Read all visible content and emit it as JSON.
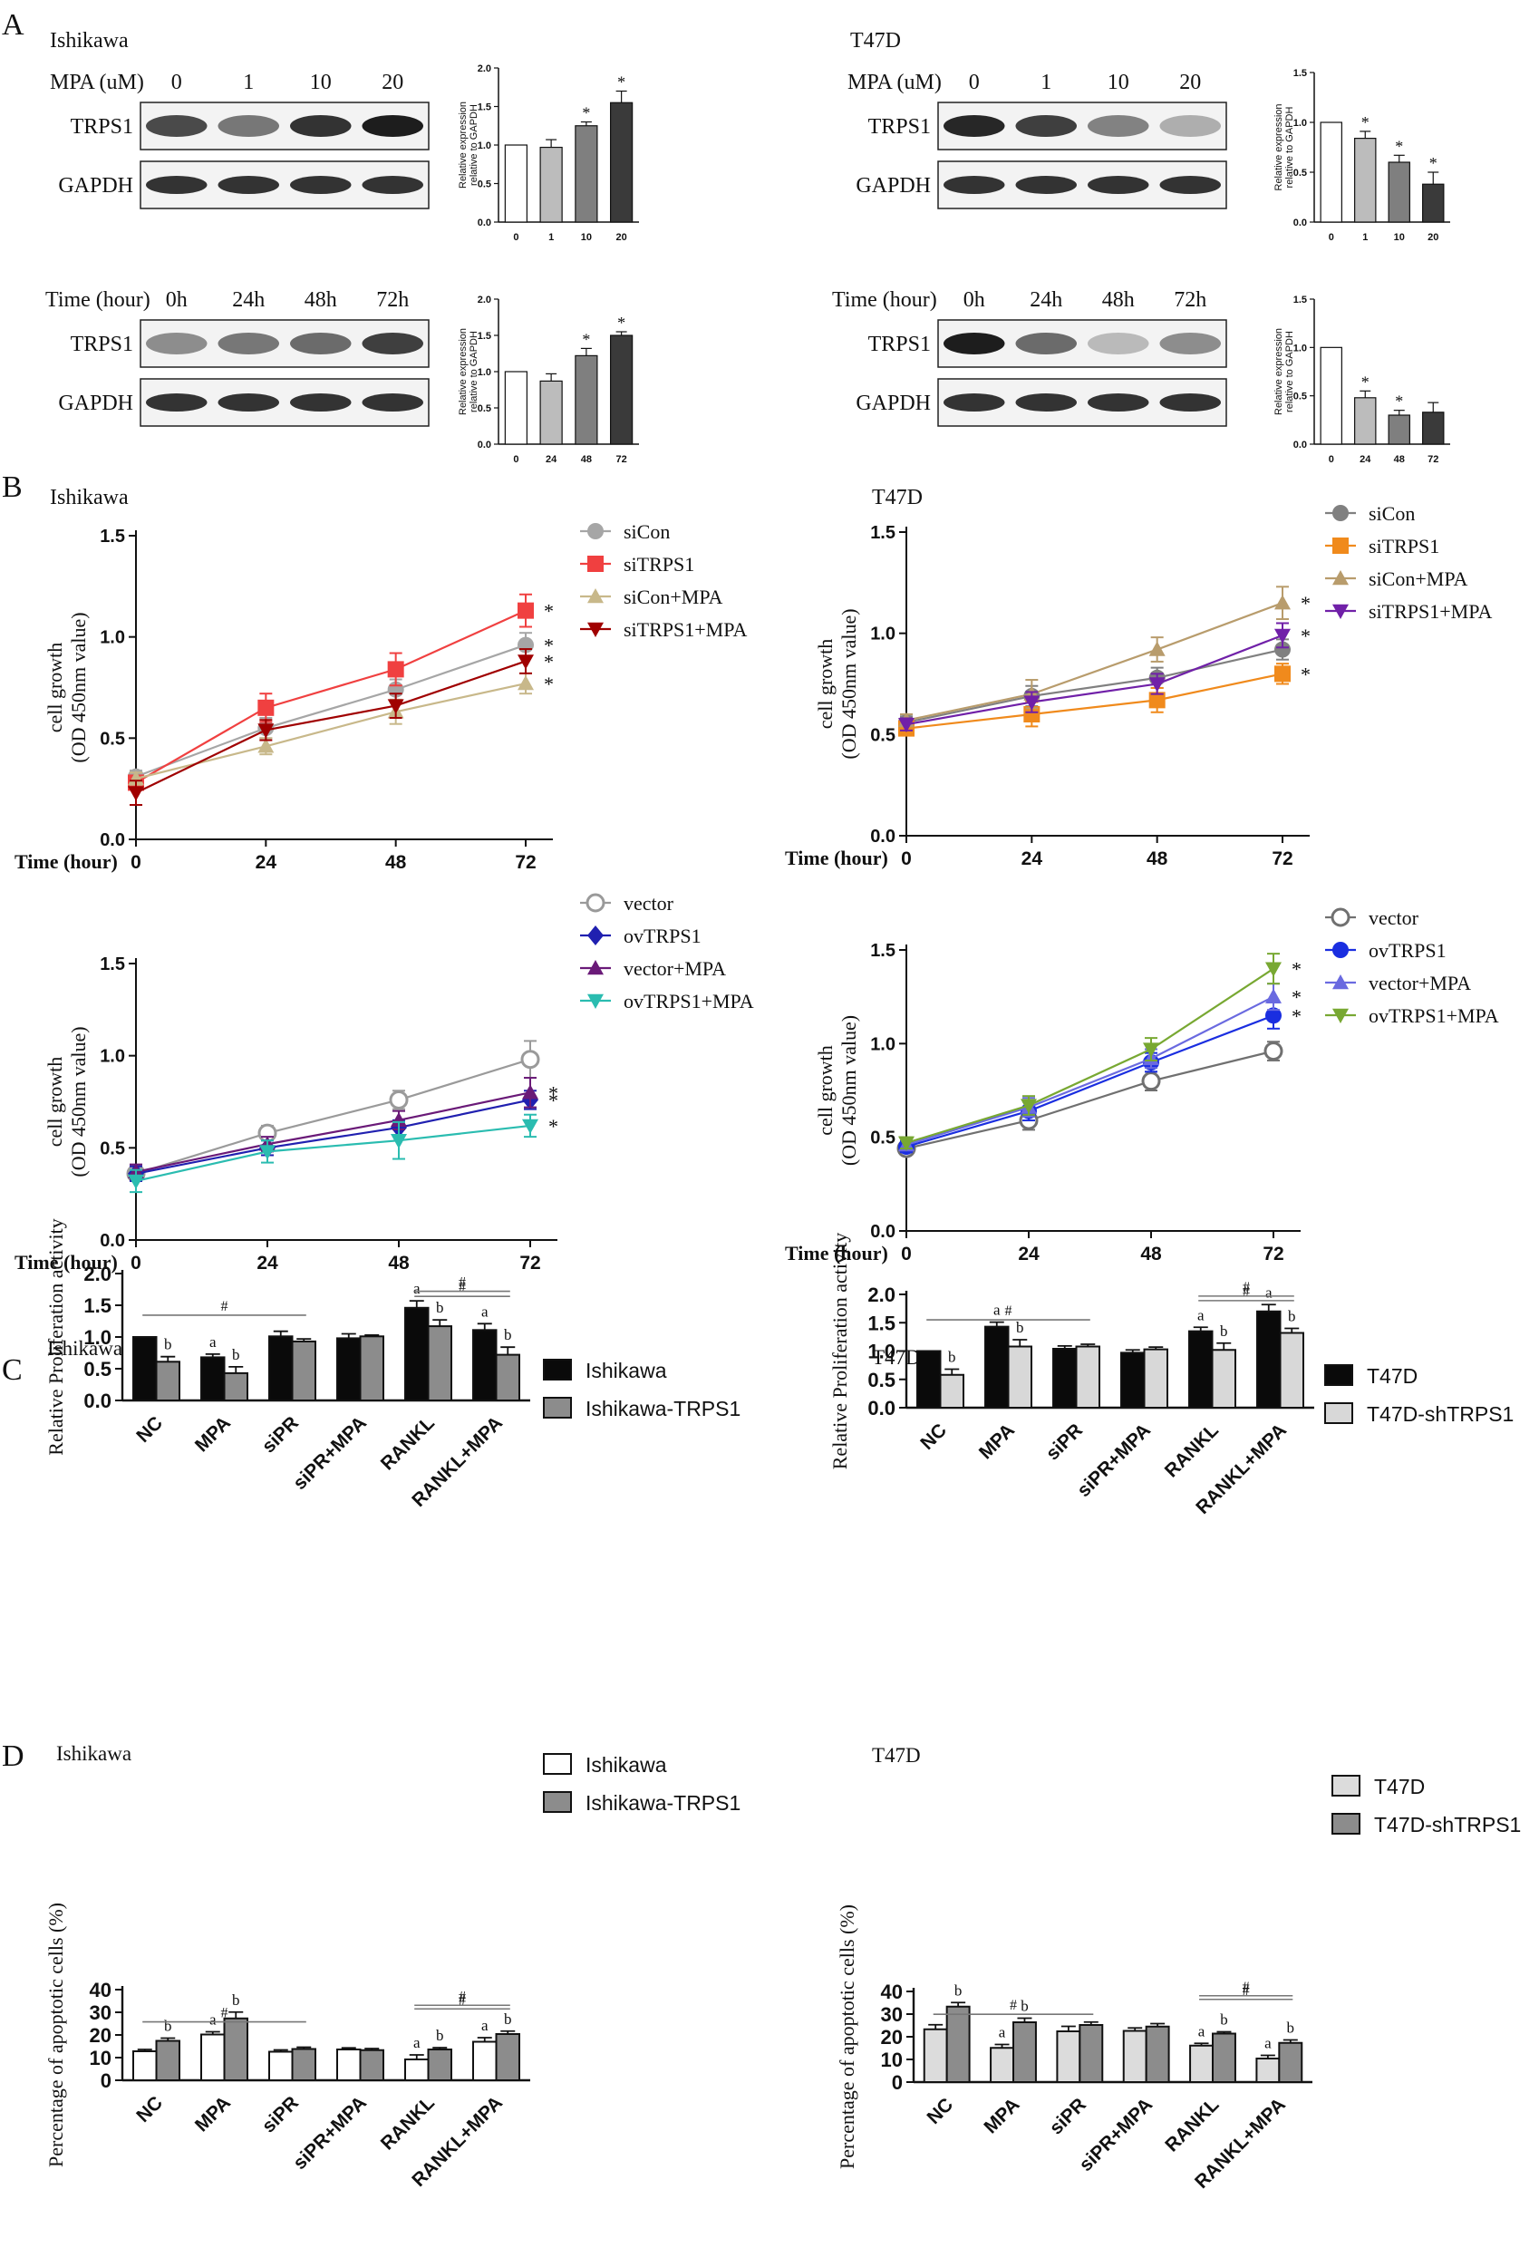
{
  "panels": {
    "A": "A",
    "B": "B",
    "C": "C",
    "D": "D"
  },
  "cells": {
    "ishikawa": "Ishikawa",
    "t47d": "T47D"
  },
  "wb": {
    "mpa_label": "MPA (uM)",
    "time_label": "Time (hour)",
    "protein_trps1": "TRPS1",
    "protein_gapdh": "GAPDH",
    "dose_lanes": [
      "0",
      "1",
      "10",
      "20"
    ],
    "time_lanes": [
      "0h",
      "24h",
      "48h",
      "72h"
    ],
    "ylabel_line1": "Relative expression",
    "ylabel_line2": "relative to GAPDH",
    "ishikawa_dose_intensity": [
      0.75,
      0.55,
      0.85,
      0.95
    ],
    "ishikawa_time_intensity": [
      0.45,
      0.55,
      0.6,
      0.8
    ],
    "t47d_dose_intensity": [
      0.9,
      0.8,
      0.5,
      0.3
    ],
    "t47d_time_intensity": [
      0.95,
      0.6,
      0.25,
      0.45
    ]
  },
  "chart_data": [
    {
      "id": "A_ish_dose",
      "type": "bar",
      "title": "",
      "categories": [
        "0",
        "1",
        "10",
        "20"
      ],
      "values": [
        1.0,
        0.97,
        1.25,
        1.55
      ],
      "errors": [
        0,
        0.1,
        0.05,
        0.15
      ],
      "stars": [
        "",
        "",
        "*",
        "*"
      ],
      "colors": [
        "#ffffff",
        "#bcbcbc",
        "#7f7f7f",
        "#3a3a3a"
      ],
      "ylim": [
        0,
        2.0
      ],
      "yticks": [
        0,
        0.5,
        1.0,
        1.5,
        2.0
      ],
      "ylabel": "Relative expression relative to GAPDH"
    },
    {
      "id": "A_ish_time",
      "type": "bar",
      "title": "",
      "categories": [
        "0",
        "24",
        "48",
        "72"
      ],
      "values": [
        1.0,
        0.87,
        1.22,
        1.5
      ],
      "errors": [
        0,
        0.1,
        0.1,
        0.05
      ],
      "stars": [
        "",
        "",
        "*",
        "*"
      ],
      "colors": [
        "#ffffff",
        "#bcbcbc",
        "#7f7f7f",
        "#3a3a3a"
      ],
      "ylim": [
        0,
        2.0
      ],
      "yticks": [
        0,
        0.5,
        1.0,
        1.5,
        2.0
      ],
      "ylabel": "Relative expression relative to GAPDH"
    },
    {
      "id": "A_t47d_dose",
      "type": "bar",
      "title": "",
      "categories": [
        "0",
        "1",
        "10",
        "20"
      ],
      "values": [
        1.0,
        0.84,
        0.6,
        0.38
      ],
      "errors": [
        0,
        0.07,
        0.07,
        0.12
      ],
      "stars": [
        "",
        "*",
        "*",
        "*"
      ],
      "colors": [
        "#ffffff",
        "#bcbcbc",
        "#7f7f7f",
        "#3a3a3a"
      ],
      "ylim": [
        0,
        1.5
      ],
      "yticks": [
        0,
        0.5,
        1.0,
        1.5
      ],
      "ylabel": "Relative expression relative to GAPDH"
    },
    {
      "id": "A_t47d_time",
      "type": "bar",
      "title": "",
      "categories": [
        "0",
        "24",
        "48",
        "72"
      ],
      "values": [
        1.0,
        0.48,
        0.3,
        0.33
      ],
      "errors": [
        0,
        0.07,
        0.05,
        0.1
      ],
      "stars": [
        "",
        "*",
        "*",
        ""
      ],
      "colors": [
        "#ffffff",
        "#bcbcbc",
        "#7f7f7f",
        "#3a3a3a"
      ],
      "ylim": [
        0,
        1.5
      ],
      "yticks": [
        0,
        0.5,
        1.0,
        1.5
      ],
      "ylabel": "Relative expression relative to GAPDH"
    },
    {
      "id": "B_ish_si",
      "type": "line",
      "title": "Ishikawa",
      "x": [
        0,
        24,
        48,
        72
      ],
      "xlabel": "Time (hour)",
      "ylabel_line1": "cell growth",
      "ylabel_line2": "(OD 450nm value)",
      "ylim": [
        0,
        1.5
      ],
      "yticks": [
        0.0,
        0.5,
        1.0,
        1.5
      ],
      "series": [
        {
          "name": "siCon",
          "color": "#a6a6a6",
          "marker": "circle",
          "values": [
            0.31,
            0.55,
            0.74,
            0.96
          ],
          "errors": [
            0.03,
            0.05,
            0.05,
            0.06
          ],
          "star": true
        },
        {
          "name": "siTRPS1",
          "color": "#f04040",
          "marker": "square",
          "values": [
            0.28,
            0.65,
            0.84,
            1.13
          ],
          "errors": [
            0.03,
            0.07,
            0.08,
            0.08
          ],
          "star": true
        },
        {
          "name": "siCon+MPA",
          "color": "#c8b88a",
          "marker": "triangle-up",
          "values": [
            0.3,
            0.46,
            0.63,
            0.77
          ],
          "errors": [
            0.03,
            0.04,
            0.06,
            0.05
          ],
          "star": true
        },
        {
          "name": "siTRPS1+MPA",
          "color": "#a00000",
          "marker": "triangle-down",
          "values": [
            0.23,
            0.54,
            0.66,
            0.88
          ],
          "errors": [
            0.06,
            0.05,
            0.06,
            0.06
          ],
          "star": true
        }
      ]
    },
    {
      "id": "B_t47d_si",
      "type": "line",
      "title": "T47D",
      "x": [
        0,
        24,
        48,
        72
      ],
      "xlabel": "Time (hour)",
      "ylabel_line1": "cell growth",
      "ylabel_line2": "(OD 450nm value)",
      "ylim": [
        0,
        1.5
      ],
      "yticks": [
        0.0,
        0.5,
        1.0,
        1.5
      ],
      "series": [
        {
          "name": "siCon",
          "color": "#808080",
          "marker": "circle",
          "values": [
            0.56,
            0.69,
            0.78,
            0.92
          ],
          "errors": [
            0.03,
            0.05,
            0.05,
            0.05
          ],
          "star": false
        },
        {
          "name": "siTRPS1",
          "color": "#f08a1c",
          "marker": "square",
          "values": [
            0.53,
            0.6,
            0.67,
            0.8
          ],
          "errors": [
            0.03,
            0.06,
            0.06,
            0.05
          ],
          "star": true
        },
        {
          "name": "siCon+MPA",
          "color": "#b89c6c",
          "marker": "triangle-up",
          "values": [
            0.57,
            0.7,
            0.92,
            1.15
          ],
          "errors": [
            0.03,
            0.07,
            0.06,
            0.08
          ],
          "star": true
        },
        {
          "name": "siTRPS1+MPA",
          "color": "#7020a8",
          "marker": "triangle-down",
          "values": [
            0.55,
            0.66,
            0.75,
            0.99
          ],
          "errors": [
            0.03,
            0.05,
            0.05,
            0.06
          ],
          "star": true
        }
      ]
    },
    {
      "id": "B_ish_ov",
      "type": "line",
      "title": "",
      "x": [
        0,
        24,
        48,
        72
      ],
      "xlabel": "Time (hour)",
      "ylabel_line1": "cell growth",
      "ylabel_line2": "(OD 450nm value)",
      "ylim": [
        0,
        1.5
      ],
      "yticks": [
        0.0,
        0.5,
        1.0,
        1.5
      ],
      "series": [
        {
          "name": "vector",
          "color": "#9a9a9a",
          "marker": "circle-open",
          "values": [
            0.36,
            0.58,
            0.76,
            0.98
          ],
          "errors": [
            0.04,
            0.04,
            0.05,
            0.1
          ],
          "star": false
        },
        {
          "name": "ovTRPS1",
          "color": "#2020b0",
          "marker": "diamond",
          "values": [
            0.36,
            0.5,
            0.61,
            0.76
          ],
          "errors": [
            0.04,
            0.04,
            0.04,
            0.05
          ],
          "star": true
        },
        {
          "name": "vector+MPA",
          "color": "#6a1a78",
          "marker": "triangle-up",
          "values": [
            0.37,
            0.52,
            0.65,
            0.8
          ],
          "errors": [
            0.04,
            0.04,
            0.05,
            0.08
          ],
          "star": true
        },
        {
          "name": "ovTRPS1+MPA",
          "color": "#2abcb0",
          "marker": "triangle-down",
          "values": [
            0.32,
            0.48,
            0.54,
            0.62
          ],
          "errors": [
            0.06,
            0.06,
            0.1,
            0.06
          ],
          "star": true
        }
      ]
    },
    {
      "id": "B_t47d_ov",
      "type": "line",
      "title": "",
      "x": [
        0,
        24,
        48,
        72
      ],
      "xlabel": "Time (hour)",
      "ylabel_line1": "cell growth",
      "ylabel_line2": "(OD 450nm value)",
      "ylim": [
        0,
        1.5
      ],
      "yticks": [
        0.0,
        0.5,
        1.0,
        1.5
      ],
      "series": [
        {
          "name": "vector",
          "color": "#707070",
          "marker": "circle-open",
          "values": [
            0.44,
            0.59,
            0.8,
            0.96
          ],
          "errors": [
            0.03,
            0.05,
            0.05,
            0.05
          ],
          "star": false
        },
        {
          "name": "ovTRPS1",
          "color": "#1a2ee0",
          "marker": "circle",
          "values": [
            0.45,
            0.64,
            0.9,
            1.15
          ],
          "errors": [
            0.03,
            0.05,
            0.05,
            0.07
          ],
          "star": true
        },
        {
          "name": "vector+MPA",
          "color": "#6a6ae0",
          "marker": "triangle-up",
          "values": [
            0.46,
            0.66,
            0.92,
            1.25
          ],
          "errors": [
            0.03,
            0.05,
            0.05,
            0.07
          ],
          "star": true
        },
        {
          "name": "ovTRPS1+MPA",
          "color": "#78a832",
          "marker": "triangle-down",
          "values": [
            0.47,
            0.67,
            0.97,
            1.4
          ],
          "errors": [
            0.03,
            0.05,
            0.06,
            0.08
          ],
          "star": true
        }
      ]
    },
    {
      "id": "C_ish",
      "type": "bar",
      "title": "Ishikawa",
      "ylabel": "Relative Proliferation activity",
      "ylim": [
        0,
        2.0
      ],
      "yticks": [
        0.0,
        0.5,
        1.0,
        1.5,
        2.0
      ],
      "categories": [
        "NC",
        "MPA",
        "siPR",
        "siPR+MPA",
        "RANKL",
        "RANKL+MPA"
      ],
      "series": [
        {
          "name": "Ishikawa",
          "color": "#0a0a0a",
          "values": [
            1.0,
            0.68,
            1.01,
            0.98,
            1.46,
            1.11
          ],
          "errors": [
            0,
            0.05,
            0.08,
            0.07,
            0.11,
            0.1
          ],
          "letters": [
            "",
            "a",
            "",
            "",
            "a",
            "a"
          ]
        },
        {
          "name": "Ishikawa-TRPS1",
          "color": "#8c8c8c",
          "values": [
            0.61,
            0.43,
            0.93,
            1.01,
            1.17,
            0.72
          ],
          "errors": [
            0.08,
            0.1,
            0.04,
            0.02,
            0.1,
            0.12
          ],
          "letters": [
            "b",
            "b",
            "",
            "",
            "b",
            "b"
          ]
        }
      ],
      "brackets": [
        {
          "from": 0,
          "to": 2,
          "label": "#"
        },
        {
          "from": 4,
          "to": 5,
          "label": "#"
        },
        {
          "from": 4,
          "to": 5,
          "label": "#",
          "upper": true
        }
      ]
    },
    {
      "id": "C_t47d",
      "type": "bar",
      "title": "T47D",
      "ylabel": "Relative Proliferation activity",
      "ylim": [
        0,
        2.0
      ],
      "yticks": [
        0.0,
        0.5,
        1.0,
        1.5,
        2.0
      ],
      "categories": [
        "NC",
        "MPA",
        "siPR",
        "siPR+MPA",
        "RANKL",
        "RANKL+MPA"
      ],
      "series": [
        {
          "name": "T47D",
          "color": "#0a0a0a",
          "values": [
            1.0,
            1.43,
            1.04,
            0.97,
            1.35,
            1.7
          ],
          "errors": [
            0,
            0.08,
            0.05,
            0.05,
            0.07,
            0.12
          ],
          "letters": [
            "",
            "a",
            "",
            "",
            "a",
            "a"
          ]
        },
        {
          "name": "T47D-shTRPS1",
          "color": "#d8d8d8",
          "values": [
            0.58,
            1.08,
            1.08,
            1.03,
            1.02,
            1.32
          ],
          "errors": [
            0.1,
            0.12,
            0.04,
            0.04,
            0.12,
            0.08
          ],
          "letters": [
            "b",
            "b",
            "",
            "",
            "b",
            "b"
          ]
        }
      ],
      "brackets": [
        {
          "from": 0,
          "to": 2,
          "label": "#"
        },
        {
          "from": 4,
          "to": 5,
          "label": "#"
        },
        {
          "from": 4,
          "to": 5,
          "label": "#",
          "upper": true
        }
      ]
    },
    {
      "id": "D_ish",
      "type": "bar",
      "title": "Ishikawa",
      "ylabel": "Percentage of apoptotic cells (%)",
      "ylim": [
        0,
        40
      ],
      "yticks": [
        0,
        10,
        20,
        30,
        40
      ],
      "categories": [
        "NC",
        "MPA",
        "siPR",
        "siPR+MPA",
        "RANKL",
        "RANKL+MPA"
      ],
      "series": [
        {
          "name": "Ishikawa",
          "color": "#ffffff",
          "values": [
            12.8,
            20.2,
            12.6,
            13.6,
            9.2,
            17.0
          ],
          "errors": [
            0.8,
            1.2,
            0.8,
            0.7,
            2.0,
            1.8
          ],
          "letters": [
            "",
            "a",
            "",
            "",
            "a",
            "a"
          ]
        },
        {
          "name": "Ishikawa-TRPS1",
          "color": "#8c8c8c",
          "values": [
            17.4,
            27.3,
            13.8,
            13.3,
            13.6,
            20.4
          ],
          "errors": [
            1.2,
            2.8,
            0.8,
            0.7,
            0.8,
            1.3
          ],
          "letters": [
            "b",
            "b",
            "",
            "",
            "b",
            "b"
          ]
        }
      ],
      "brackets": [
        {
          "from": 0,
          "to": 2,
          "label": "#"
        },
        {
          "from": 4,
          "to": 5,
          "label": "#"
        },
        {
          "from": 4,
          "to": 5,
          "label": "#",
          "upper": true
        }
      ]
    },
    {
      "id": "D_t47d",
      "type": "bar",
      "title": "T47D",
      "ylabel": "Percentage of apoptotic cells (%)",
      "ylim": [
        0,
        40
      ],
      "yticks": [
        0,
        10,
        20,
        30,
        40
      ],
      "categories": [
        "NC",
        "MPA",
        "siPR",
        "siPR+MPA",
        "RANKL",
        "RANKL+MPA"
      ],
      "series": [
        {
          "name": "T47D",
          "color": "#dcdcdc",
          "values": [
            23.3,
            15.1,
            22.4,
            22.6,
            16.1,
            10.4
          ],
          "errors": [
            2.0,
            1.5,
            2.2,
            1.3,
            1.0,
            1.4
          ],
          "letters": [
            "",
            "a",
            "",
            "",
            "a",
            "a"
          ]
        },
        {
          "name": "T47D-shTRPS1",
          "color": "#8c8c8c",
          "values": [
            33.3,
            26.4,
            25.2,
            24.5,
            21.4,
            17.3
          ],
          "errors": [
            1.8,
            1.8,
            1.3,
            1.3,
            0.8,
            1.3
          ],
          "letters": [
            "b",
            "b",
            "",
            "",
            "b",
            "b"
          ]
        }
      ],
      "brackets": [
        {
          "from": 0,
          "to": 2,
          "label": "#"
        },
        {
          "from": 4,
          "to": 5,
          "label": "#"
        },
        {
          "from": 4,
          "to": 5,
          "label": "#",
          "upper": true
        }
      ]
    }
  ]
}
